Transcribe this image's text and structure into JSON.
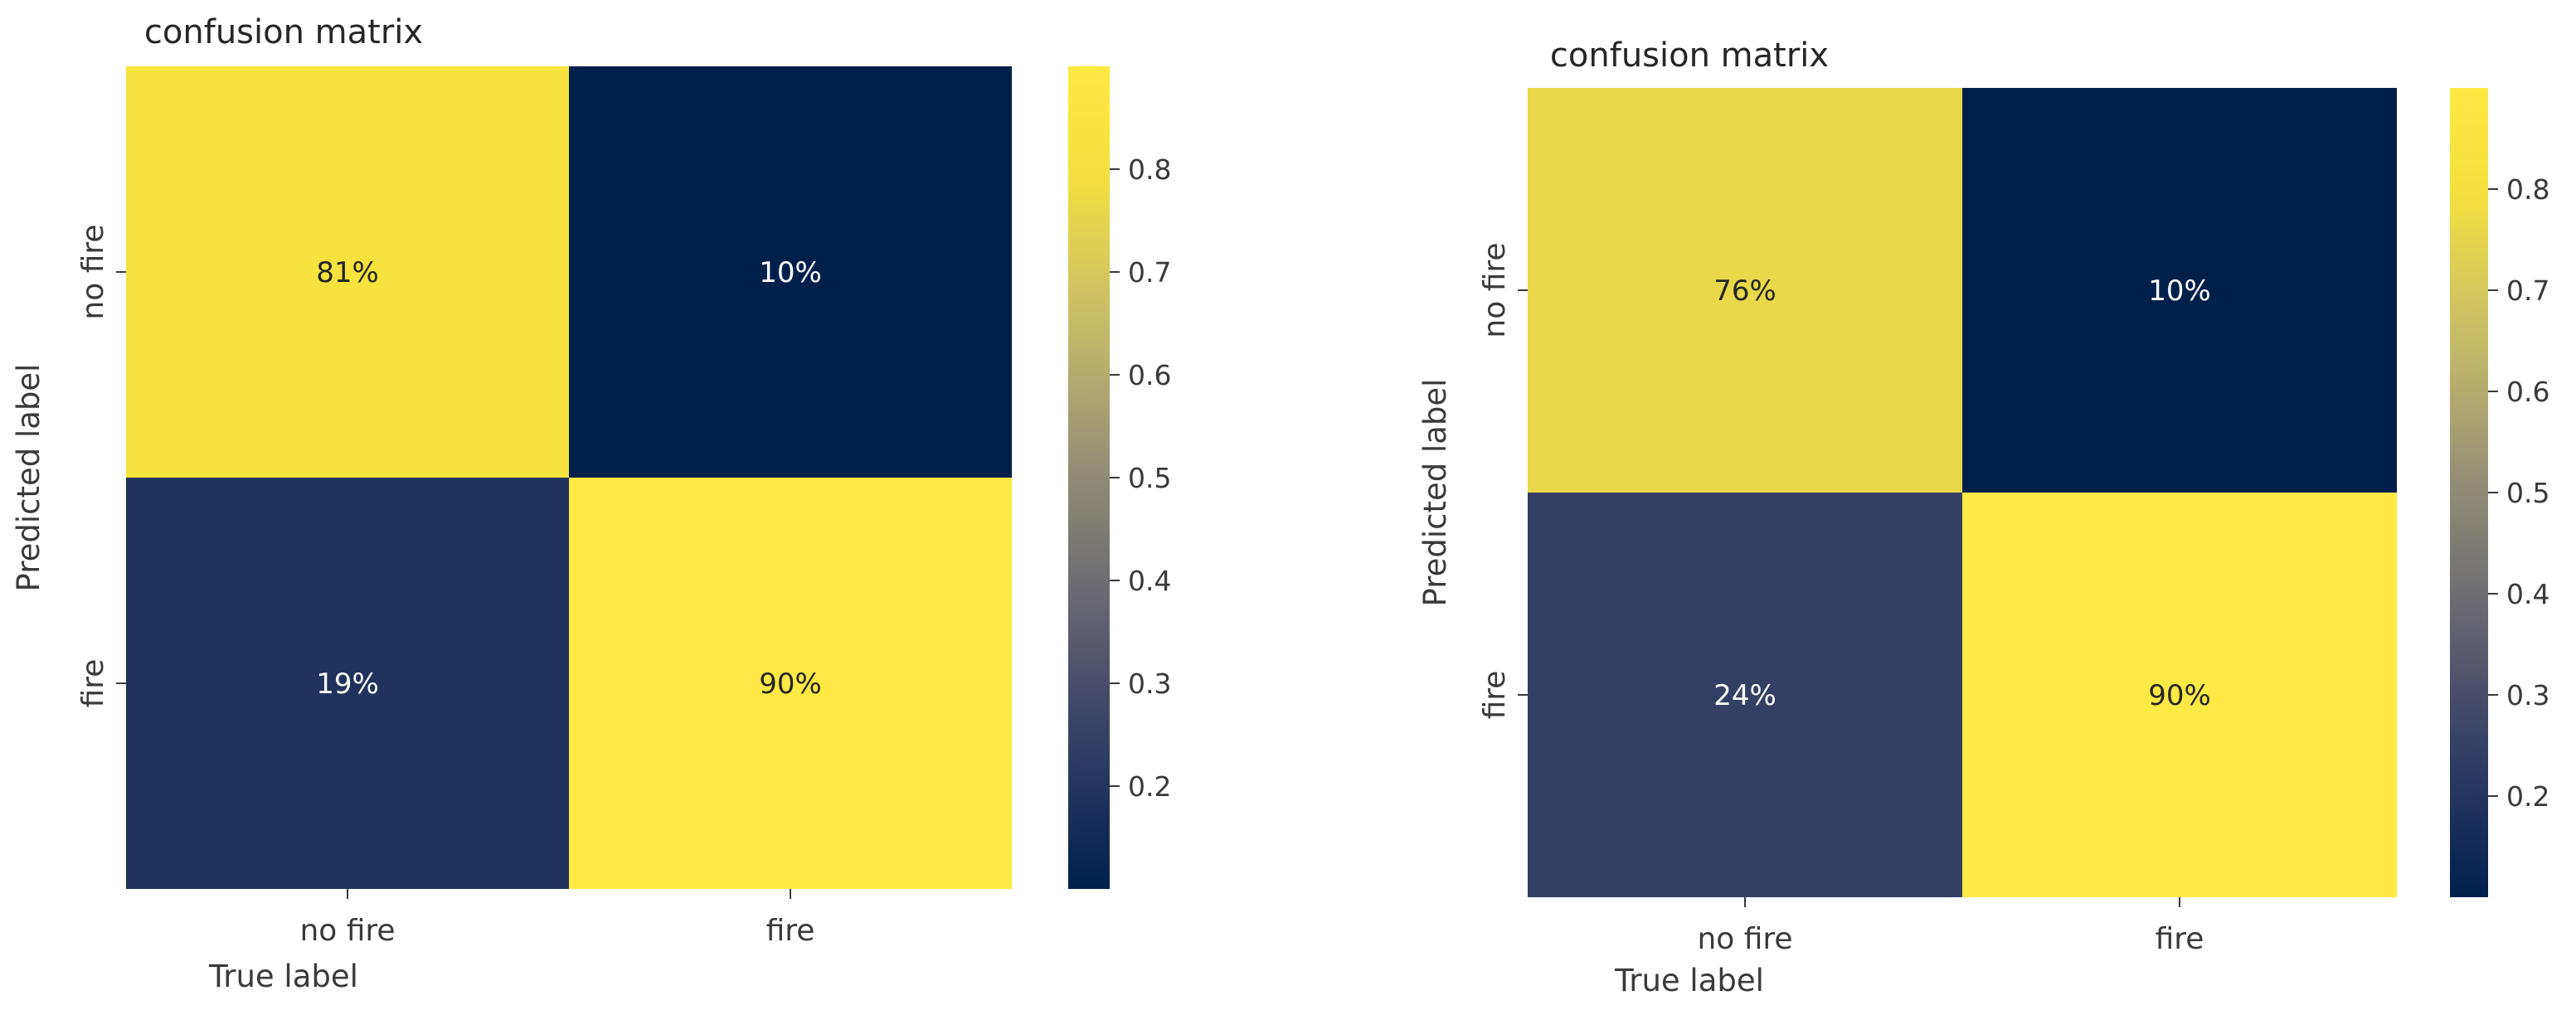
{
  "colors": {
    "colormap": "cividis",
    "stops": [
      "#00204c",
      "#23355e",
      "#4a4d6b",
      "#6f6e72",
      "#8f8b76",
      "#b5ac70",
      "#d6c85d",
      "#f5e23c",
      "#ffe945"
    ],
    "text_dark": "#262626",
    "text_light": "#ffffff"
  },
  "chart_data": [
    {
      "type": "heatmap",
      "title": "confusion matrix",
      "xlabel": "True label",
      "ylabel": "Predicted label",
      "x_categories": [
        "no fire",
        "fire"
      ],
      "y_categories": [
        "no fire",
        "fire"
      ],
      "values": [
        [
          0.81,
          0.1
        ],
        [
          0.19,
          0.9
        ]
      ],
      "annotations": [
        [
          "81%",
          "10%"
        ],
        [
          "19%",
          "90%"
        ]
      ],
      "colorbar": {
        "vmin": 0.1,
        "vmax": 0.9,
        "ticks": [
          "0.2",
          "0.3",
          "0.4",
          "0.5",
          "0.6",
          "0.7",
          "0.8"
        ]
      },
      "grid": false
    },
    {
      "type": "heatmap",
      "title": "confusion matrix",
      "xlabel": "True label",
      "ylabel": "Predicted label",
      "x_categories": [
        "no fire",
        "fire"
      ],
      "y_categories": [
        "no fire",
        "fire"
      ],
      "values": [
        [
          0.76,
          0.1
        ],
        [
          0.24,
          0.9
        ]
      ],
      "annotations": [
        [
          "76%",
          "10%"
        ],
        [
          "24%",
          "90%"
        ]
      ],
      "colorbar": {
        "vmin": 0.1,
        "vmax": 0.9,
        "ticks": [
          "0.2",
          "0.3",
          "0.4",
          "0.5",
          "0.6",
          "0.7",
          "0.8"
        ]
      },
      "grid": false
    }
  ]
}
